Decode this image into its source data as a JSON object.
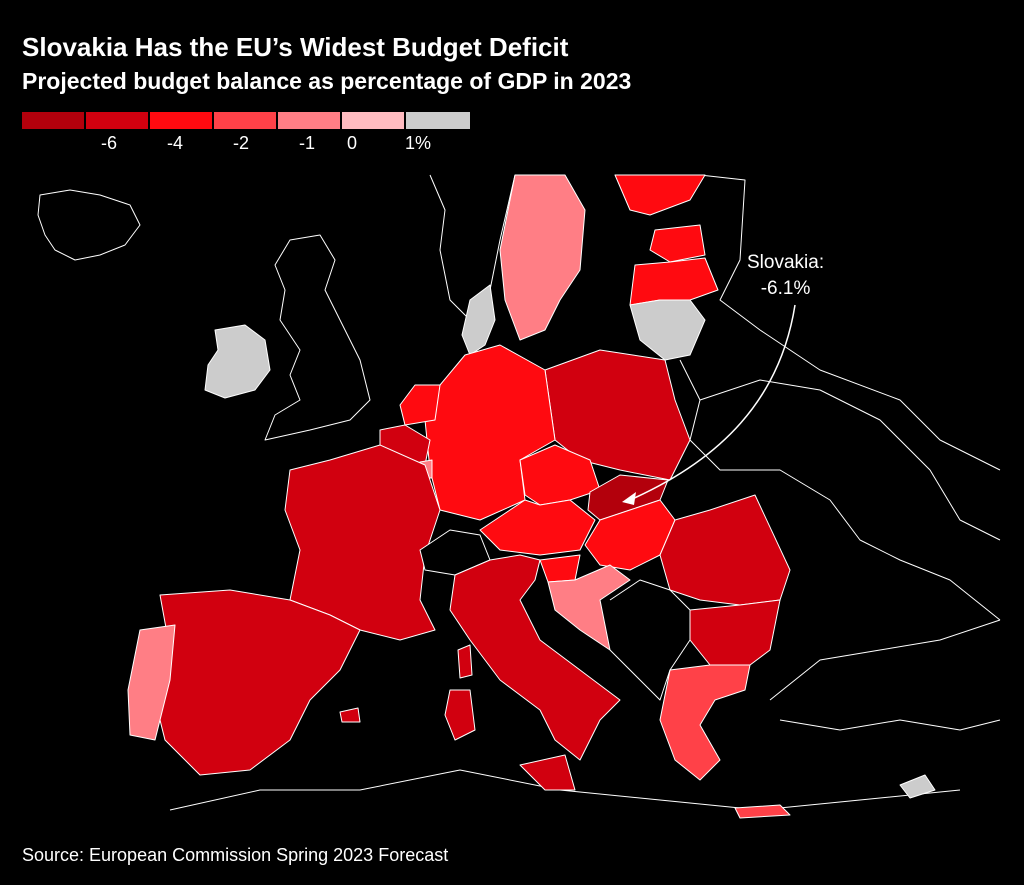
{
  "title": "Slovakia Has the EU’s Widest Budget Deficit",
  "subtitle": "Projected budget balance as percentage of GDP in 2023",
  "legend": {
    "colors": [
      "#b3000c",
      "#d1000f",
      "#ff0a10",
      "#ff4148",
      "#ff7e85",
      "#ffbbc0",
      "#cccccc"
    ],
    "ticks": [
      "-6",
      "-4",
      "-2",
      "-1",
      "0",
      "1%"
    ]
  },
  "annotation": {
    "line1": "Slovakia:",
    "line2": "-6.1%"
  },
  "source": "Source: European Commission Spring 2023 Forecast",
  "colors": {
    "background": "#000000",
    "border": "#ffffff",
    "no_data": "#cccccc"
  }
}
